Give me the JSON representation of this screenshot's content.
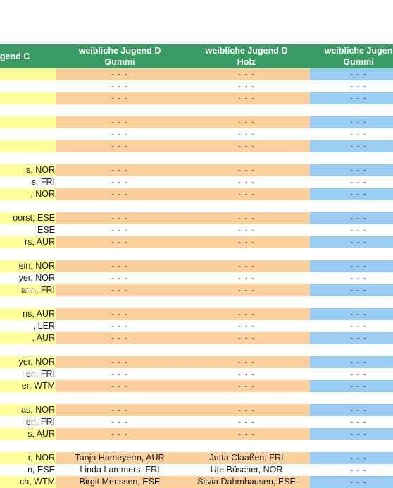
{
  "table": {
    "headers": [
      {
        "line1": "gend C",
        "line2": ""
      },
      {
        "line1": "weibliche Jugend D",
        "line2": "Gummi"
      },
      {
        "line1": "weibliche Jugend D",
        "line2": "Holz"
      },
      {
        "line1": "weibliche Jugen",
        "line2": "Gummi"
      }
    ],
    "rows": [
      {
        "hl": true,
        "cells": [
          "",
          "- - -",
          "- - -",
          "- - -"
        ]
      },
      {
        "hl": false,
        "cells": [
          "",
          "- - -",
          "- - -",
          "- - -"
        ]
      },
      {
        "hl": true,
        "cells": [
          "",
          "- - -",
          "- - -",
          "- - -"
        ]
      },
      {
        "hl": false,
        "cells": [
          "",
          "",
          "",
          ""
        ]
      },
      {
        "hl": true,
        "cells": [
          "",
          "- - -",
          "- - -",
          "- - -"
        ]
      },
      {
        "hl": false,
        "cells": [
          "",
          "- - -",
          "- - -",
          "- - -"
        ]
      },
      {
        "hl": true,
        "cells": [
          "",
          "- - -",
          "- - -",
          "- - -"
        ]
      },
      {
        "hl": false,
        "cells": [
          "",
          "",
          "",
          ""
        ]
      },
      {
        "hl": true,
        "cells": [
          "s, NOR",
          "- - -",
          "- - -",
          "- - -"
        ]
      },
      {
        "hl": false,
        "cells": [
          "s, FRI",
          "- - -",
          "- - -",
          "- - -"
        ]
      },
      {
        "hl": true,
        "cells": [
          ", NOR",
          "- - -",
          "- - -",
          "- - -"
        ]
      },
      {
        "hl": false,
        "cells": [
          "",
          "",
          "",
          ""
        ]
      },
      {
        "hl": true,
        "cells": [
          "oorst, ESE",
          "- - -",
          "- - -",
          "- - -"
        ]
      },
      {
        "hl": false,
        "cells": [
          " ESE",
          "- - -",
          "- - -",
          "- - -"
        ]
      },
      {
        "hl": true,
        "cells": [
          "rs, AUR",
          "- - -",
          "- - -",
          "- - -"
        ]
      },
      {
        "hl": false,
        "cells": [
          "",
          "",
          "",
          ""
        ]
      },
      {
        "hl": true,
        "cells": [
          "ein, NOR",
          "- - -",
          "- - -",
          "- - -"
        ]
      },
      {
        "hl": false,
        "cells": [
          "yer, NOR",
          "- - -",
          "- - -",
          "- - -"
        ]
      },
      {
        "hl": true,
        "cells": [
          "ann, FRI",
          "- - -",
          "- - -",
          "- - -"
        ]
      },
      {
        "hl": false,
        "cells": [
          "",
          "",
          "",
          ""
        ]
      },
      {
        "hl": true,
        "cells": [
          "ns, AUR",
          "- - -",
          "- - -",
          "- - -"
        ]
      },
      {
        "hl": false,
        "cells": [
          ", LER",
          "- - -",
          "- - -",
          "- - -"
        ]
      },
      {
        "hl": true,
        "cells": [
          ", AUR",
          "- - -",
          "- - -",
          "- - -"
        ]
      },
      {
        "hl": false,
        "cells": [
          "",
          "",
          "",
          ""
        ]
      },
      {
        "hl": true,
        "cells": [
          "yer, NOR",
          "- - -",
          "- - -",
          "- - -"
        ]
      },
      {
        "hl": false,
        "cells": [
          "en, FRI",
          "- - -",
          "- - -",
          "- - -"
        ]
      },
      {
        "hl": true,
        "cells": [
          "er. WTM",
          "- - -",
          "- - -",
          "- - -"
        ]
      },
      {
        "hl": false,
        "cells": [
          "",
          "",
          "",
          ""
        ]
      },
      {
        "hl": true,
        "cells": [
          "as, NOR",
          "- - -",
          "- - -",
          "- - -"
        ]
      },
      {
        "hl": false,
        "cells": [
          "en, FRI",
          "- - -",
          "- - -",
          "- - -"
        ]
      },
      {
        "hl": true,
        "cells": [
          "s, AUR",
          "- - -",
          "- - -",
          "- - -"
        ]
      },
      {
        "hl": false,
        "cells": [
          "",
          "",
          "",
          ""
        ]
      },
      {
        "hl": true,
        "cells": [
          "r, NOR",
          "Tanja Hameyerm, AUR",
          "Jutta Claaßen, FRI",
          "- - -"
        ]
      },
      {
        "hl": false,
        "cells": [
          "n, ESE",
          "Linda Lammers, FRI",
          "Ute Büscher, NOR",
          "- - -"
        ]
      },
      {
        "hl": true,
        "cells": [
          "ch, WTM",
          "Birgit Menssen, ESE",
          "Silvia Dahmhausen, ESE",
          "- - -"
        ]
      }
    ]
  }
}
